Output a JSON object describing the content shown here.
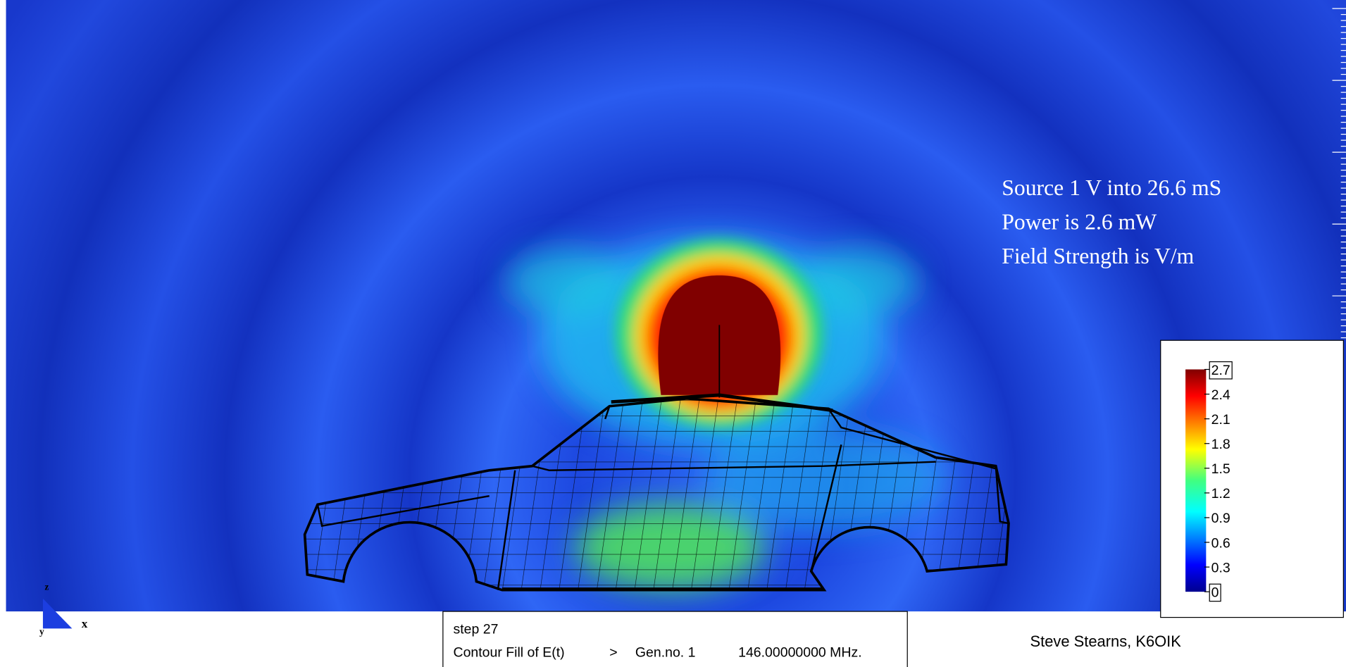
{
  "annotation": {
    "lines": [
      "Source 1 V into 26.6 mS",
      "Power is 2.6 mW",
      "Field Strength is V/m"
    ]
  },
  "colorbar": {
    "ticks": [
      0,
      0.3,
      0.6,
      0.9,
      1.2,
      1.5,
      1.8,
      2.1,
      2.4,
      2.7
    ]
  },
  "axes": {
    "x": "x",
    "z": "z",
    "y": "y"
  },
  "status": {
    "step": "step 27",
    "plot": "Contour Fill of E(t)",
    "separator": ">",
    "generator": "Gen.no. 1",
    "frequency": "146.00000000 MHz."
  },
  "author": "Steve Stearns, K6OIK"
}
